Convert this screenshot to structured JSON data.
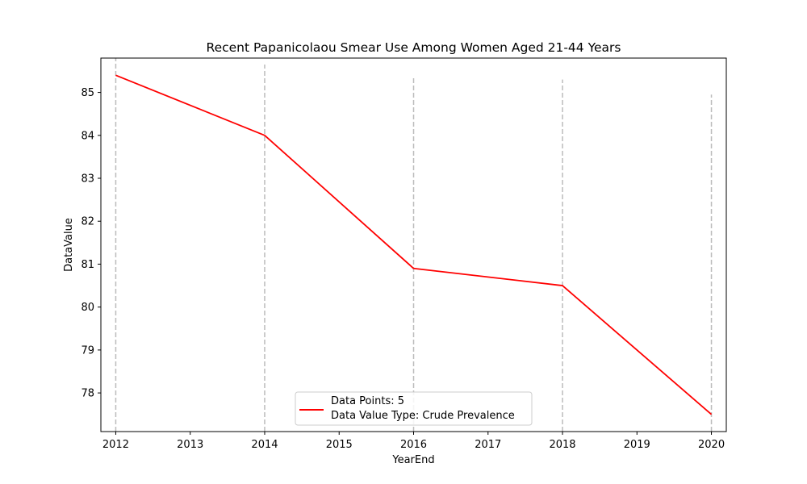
{
  "chart_data": {
    "type": "line",
    "title": "Recent Papanicolaou Smear Use Among Women Aged 21-44 Years",
    "xlabel": "YearEnd",
    "ylabel": "DataValue",
    "xlim": [
      2011.8,
      2020.2
    ],
    "ylim": [
      77.1,
      85.8
    ],
    "xticks": [
      2012,
      2013,
      2014,
      2015,
      2016,
      2017,
      2018,
      2019,
      2020
    ],
    "yticks": [
      78,
      79,
      80,
      81,
      82,
      83,
      84,
      85
    ],
    "grid": false,
    "series": [
      {
        "name": "Data Points: 5",
        "color": "#ff0000",
        "x": [
          2012,
          2014,
          2016,
          2018,
          2020
        ],
        "y": [
          85.4,
          84.0,
          80.9,
          80.5,
          77.5
        ]
      }
    ],
    "vlines": {
      "color": "#bbbbbb",
      "style": "dashed",
      "x": [
        2012,
        2014,
        2016,
        2018,
        2020
      ],
      "top": [
        85.8,
        85.65,
        85.35,
        85.3,
        84.95
      ]
    },
    "legend": {
      "placement": "lower-center",
      "lines": [
        "Data Points: 5",
        "Data Value Type: Crude Prevalence"
      ]
    }
  }
}
